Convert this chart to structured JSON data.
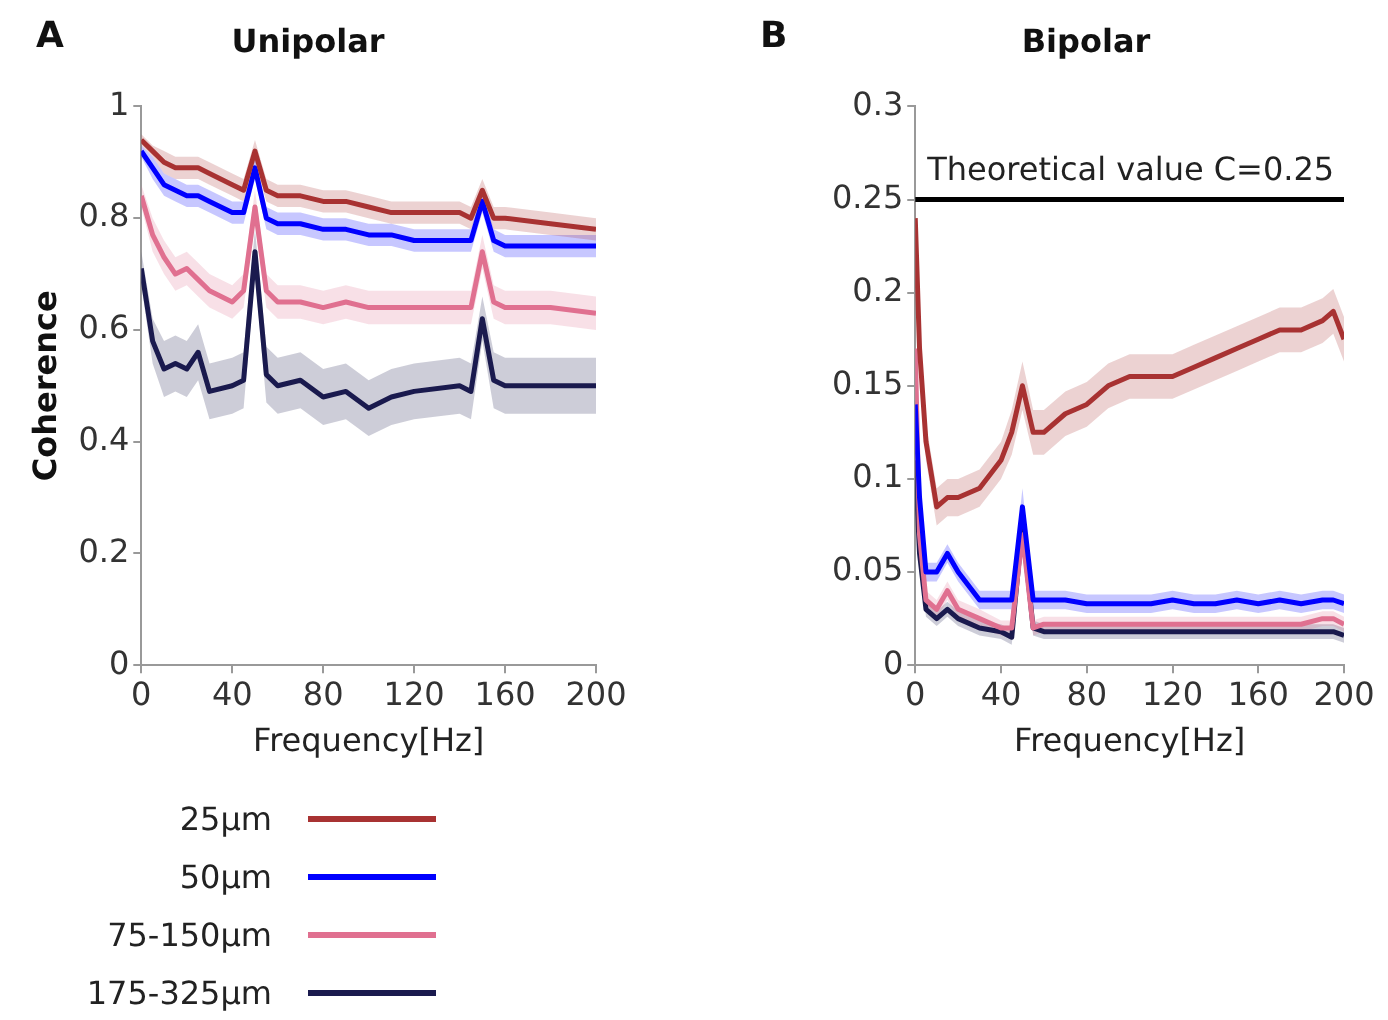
{
  "chart_data": [
    {
      "type": "line",
      "title": "Unipolar",
      "xlabel": "Frequency[Hz]",
      "ylabel": "Coherence",
      "annotations": [
        "A"
      ],
      "xlim": [
        0,
        200
      ],
      "xticks": [
        0,
        40,
        80,
        120,
        160,
        200
      ],
      "ylim": [
        0,
        1
      ],
      "yticks": [
        0,
        0.2,
        0.4,
        0.6,
        0.8,
        1
      ],
      "grid": false,
      "legend": "bottom",
      "marker": "none",
      "line_style": "solid",
      "x": [
        0,
        5,
        10,
        15,
        20,
        25,
        30,
        40,
        45,
        50,
        55,
        60,
        70,
        80,
        90,
        100,
        110,
        120,
        140,
        145,
        150,
        155,
        160,
        180,
        200
      ],
      "series": [
        {
          "name": "25µm",
          "color": "#a83232",
          "values": [
            0.94,
            0.92,
            0.9,
            0.89,
            0.89,
            0.89,
            0.88,
            0.86,
            0.85,
            0.92,
            0.85,
            0.84,
            0.84,
            0.83,
            0.83,
            0.82,
            0.81,
            0.81,
            0.81,
            0.8,
            0.85,
            0.8,
            0.8,
            0.79,
            0.78
          ],
          "lower": [
            0.93,
            0.91,
            0.88,
            0.87,
            0.87,
            0.87,
            0.86,
            0.84,
            0.83,
            0.9,
            0.83,
            0.82,
            0.82,
            0.81,
            0.81,
            0.8,
            0.79,
            0.79,
            0.79,
            0.78,
            0.83,
            0.78,
            0.78,
            0.77,
            0.76
          ],
          "upper": [
            0.95,
            0.93,
            0.92,
            0.91,
            0.91,
            0.91,
            0.9,
            0.88,
            0.87,
            0.94,
            0.87,
            0.86,
            0.86,
            0.85,
            0.85,
            0.84,
            0.83,
            0.83,
            0.83,
            0.82,
            0.87,
            0.82,
            0.82,
            0.81,
            0.8
          ]
        },
        {
          "name": "50µm",
          "color": "#0000ff",
          "values": [
            0.92,
            0.89,
            0.86,
            0.85,
            0.84,
            0.84,
            0.83,
            0.81,
            0.81,
            0.89,
            0.8,
            0.79,
            0.79,
            0.78,
            0.78,
            0.77,
            0.77,
            0.76,
            0.76,
            0.76,
            0.83,
            0.76,
            0.75,
            0.75,
            0.75
          ],
          "lower": [
            0.91,
            0.87,
            0.84,
            0.83,
            0.82,
            0.82,
            0.81,
            0.79,
            0.79,
            0.87,
            0.78,
            0.77,
            0.77,
            0.76,
            0.76,
            0.75,
            0.75,
            0.74,
            0.74,
            0.74,
            0.81,
            0.74,
            0.73,
            0.73,
            0.73
          ],
          "upper": [
            0.93,
            0.91,
            0.88,
            0.87,
            0.86,
            0.86,
            0.85,
            0.83,
            0.83,
            0.91,
            0.82,
            0.81,
            0.81,
            0.8,
            0.8,
            0.79,
            0.79,
            0.78,
            0.78,
            0.78,
            0.85,
            0.78,
            0.77,
            0.77,
            0.77
          ]
        },
        {
          "name": "75-150µm",
          "color": "#e07090",
          "values": [
            0.84,
            0.77,
            0.73,
            0.7,
            0.71,
            0.69,
            0.67,
            0.65,
            0.67,
            0.82,
            0.67,
            0.65,
            0.65,
            0.64,
            0.65,
            0.64,
            0.64,
            0.64,
            0.64,
            0.64,
            0.74,
            0.65,
            0.64,
            0.64,
            0.63
          ],
          "lower": [
            0.82,
            0.74,
            0.7,
            0.67,
            0.68,
            0.66,
            0.64,
            0.62,
            0.64,
            0.79,
            0.64,
            0.62,
            0.62,
            0.61,
            0.62,
            0.61,
            0.61,
            0.61,
            0.61,
            0.61,
            0.71,
            0.62,
            0.61,
            0.61,
            0.6
          ],
          "upper": [
            0.86,
            0.8,
            0.76,
            0.73,
            0.74,
            0.72,
            0.7,
            0.68,
            0.7,
            0.85,
            0.7,
            0.68,
            0.68,
            0.67,
            0.68,
            0.67,
            0.67,
            0.67,
            0.67,
            0.67,
            0.77,
            0.68,
            0.67,
            0.67,
            0.66
          ]
        },
        {
          "name": "175-325µm",
          "color": "#1a1a4e",
          "values": [
            0.71,
            0.58,
            0.53,
            0.54,
            0.53,
            0.56,
            0.49,
            0.5,
            0.51,
            0.74,
            0.52,
            0.5,
            0.51,
            0.48,
            0.49,
            0.46,
            0.48,
            0.49,
            0.5,
            0.49,
            0.62,
            0.51,
            0.5,
            0.5,
            0.5
          ],
          "lower": [
            0.68,
            0.54,
            0.48,
            0.49,
            0.48,
            0.51,
            0.44,
            0.45,
            0.46,
            0.7,
            0.47,
            0.45,
            0.46,
            0.43,
            0.44,
            0.41,
            0.43,
            0.44,
            0.45,
            0.44,
            0.58,
            0.46,
            0.45,
            0.45,
            0.45
          ],
          "upper": [
            0.74,
            0.62,
            0.58,
            0.59,
            0.58,
            0.61,
            0.54,
            0.55,
            0.56,
            0.78,
            0.57,
            0.55,
            0.56,
            0.53,
            0.54,
            0.51,
            0.53,
            0.54,
            0.55,
            0.54,
            0.66,
            0.56,
            0.55,
            0.55,
            0.55
          ]
        }
      ]
    },
    {
      "type": "line",
      "title": "Bipolar",
      "xlabel": "Frequency[Hz]",
      "annotations": [
        "B"
      ],
      "xlim": [
        0,
        200
      ],
      "xticks": [
        0,
        40,
        80,
        120,
        160,
        200
      ],
      "ylim": [
        0,
        0.3
      ],
      "yticks": [
        0,
        0.05,
        0.1,
        0.15,
        0.2,
        0.25,
        0.3
      ],
      "grid": false,
      "marker": "none",
      "line_style": "solid",
      "ref_lines": [
        {
          "axis": "y",
          "value": 0.25,
          "label": "Theoretical value C=0.25",
          "color": "#000000"
        }
      ],
      "x": [
        0,
        2,
        5,
        10,
        15,
        20,
        30,
        40,
        45,
        50,
        55,
        60,
        70,
        80,
        90,
        100,
        110,
        120,
        130,
        140,
        150,
        160,
        170,
        180,
        190,
        195,
        200
      ],
      "series": [
        {
          "color": "#a83232",
          "values": [
            0.24,
            0.17,
            0.12,
            0.085,
            0.09,
            0.09,
            0.095,
            0.11,
            0.125,
            0.15,
            0.125,
            0.125,
            0.135,
            0.14,
            0.15,
            0.155,
            0.155,
            0.155,
            0.16,
            0.165,
            0.17,
            0.175,
            0.18,
            0.18,
            0.185,
            0.19,
            0.175
          ],
          "lower": [
            0.23,
            0.16,
            0.11,
            0.075,
            0.08,
            0.08,
            0.085,
            0.1,
            0.113,
            0.137,
            0.113,
            0.113,
            0.123,
            0.128,
            0.138,
            0.143,
            0.143,
            0.143,
            0.148,
            0.153,
            0.158,
            0.163,
            0.168,
            0.168,
            0.173,
            0.178,
            0.163
          ],
          "upper": [
            0.25,
            0.18,
            0.13,
            0.095,
            0.1,
            0.1,
            0.105,
            0.12,
            0.137,
            0.163,
            0.137,
            0.137,
            0.147,
            0.152,
            0.162,
            0.167,
            0.167,
            0.167,
            0.172,
            0.177,
            0.182,
            0.187,
            0.192,
            0.192,
            0.197,
            0.202,
            0.187
          ]
        },
        {
          "color": "#0000ff",
          "values": [
            0.14,
            0.09,
            0.05,
            0.05,
            0.06,
            0.05,
            0.035,
            0.035,
            0.035,
            0.085,
            0.035,
            0.035,
            0.035,
            0.033,
            0.033,
            0.033,
            0.033,
            0.035,
            0.033,
            0.033,
            0.035,
            0.033,
            0.035,
            0.033,
            0.035,
            0.035,
            0.033
          ],
          "lower": [
            0.135,
            0.085,
            0.045,
            0.045,
            0.055,
            0.045,
            0.03,
            0.03,
            0.03,
            0.075,
            0.03,
            0.03,
            0.03,
            0.028,
            0.028,
            0.028,
            0.028,
            0.03,
            0.028,
            0.028,
            0.03,
            0.028,
            0.03,
            0.028,
            0.03,
            0.03,
            0.028
          ],
          "upper": [
            0.145,
            0.095,
            0.055,
            0.055,
            0.065,
            0.055,
            0.04,
            0.04,
            0.04,
            0.095,
            0.04,
            0.04,
            0.04,
            0.038,
            0.038,
            0.038,
            0.038,
            0.04,
            0.038,
            0.038,
            0.04,
            0.038,
            0.04,
            0.038,
            0.04,
            0.04,
            0.038
          ]
        },
        {
          "color": "#e07090",
          "values": [
            0.17,
            0.07,
            0.035,
            0.03,
            0.04,
            0.03,
            0.025,
            0.02,
            0.02,
            0.07,
            0.02,
            0.022,
            0.022,
            0.022,
            0.022,
            0.022,
            0.022,
            0.022,
            0.022,
            0.022,
            0.022,
            0.022,
            0.022,
            0.022,
            0.025,
            0.025,
            0.022
          ],
          "lower": [
            0.165,
            0.065,
            0.03,
            0.025,
            0.035,
            0.025,
            0.02,
            0.016,
            0.016,
            0.063,
            0.016,
            0.018,
            0.018,
            0.018,
            0.018,
            0.018,
            0.018,
            0.018,
            0.018,
            0.018,
            0.018,
            0.018,
            0.018,
            0.018,
            0.021,
            0.021,
            0.018
          ],
          "upper": [
            0.175,
            0.075,
            0.04,
            0.035,
            0.045,
            0.035,
            0.03,
            0.024,
            0.024,
            0.077,
            0.024,
            0.026,
            0.026,
            0.026,
            0.026,
            0.026,
            0.026,
            0.026,
            0.026,
            0.026,
            0.026,
            0.026,
            0.026,
            0.026,
            0.029,
            0.029,
            0.026
          ]
        },
        {
          "color": "#1a1a4e",
          "values": [
            0.11,
            0.06,
            0.03,
            0.025,
            0.03,
            0.025,
            0.02,
            0.018,
            0.015,
            0.075,
            0.02,
            0.018,
            0.018,
            0.018,
            0.018,
            0.018,
            0.018,
            0.018,
            0.018,
            0.018,
            0.018,
            0.018,
            0.018,
            0.018,
            0.018,
            0.018,
            0.016
          ],
          "lower": [
            0.105,
            0.056,
            0.026,
            0.021,
            0.026,
            0.021,
            0.016,
            0.014,
            0.011,
            0.068,
            0.016,
            0.014,
            0.014,
            0.014,
            0.014,
            0.014,
            0.014,
            0.014,
            0.014,
            0.014,
            0.014,
            0.014,
            0.014,
            0.014,
            0.014,
            0.014,
            0.012
          ],
          "upper": [
            0.115,
            0.064,
            0.034,
            0.029,
            0.034,
            0.029,
            0.024,
            0.022,
            0.019,
            0.082,
            0.024,
            0.022,
            0.022,
            0.022,
            0.022,
            0.022,
            0.022,
            0.022,
            0.022,
            0.022,
            0.022,
            0.022,
            0.022,
            0.022,
            0.022,
            0.022,
            0.02
          ]
        }
      ]
    }
  ]
}
